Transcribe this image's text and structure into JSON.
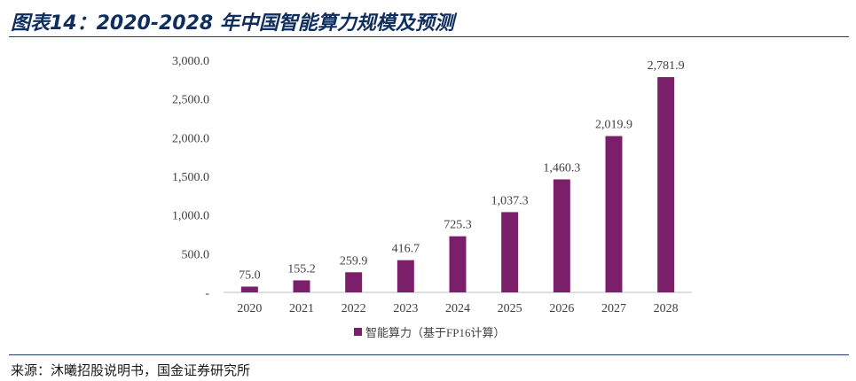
{
  "figure": {
    "title": "图表14：2020-2028 年中国智能算力规模及预测",
    "source": "来源：沐曦招股说明书，国金证券研究所"
  },
  "colors": {
    "bar": "#7b1f6b",
    "title": "#0f2e5e",
    "rule": "#1f3d6b",
    "axis": "#bfbfbf",
    "text": "#404040"
  },
  "chart_data": {
    "type": "bar",
    "title": "",
    "xlabel": "",
    "ylabel": "",
    "categories": [
      "2020",
      "2021",
      "2022",
      "2023",
      "2024",
      "2025",
      "2026",
      "2027",
      "2028"
    ],
    "series": [
      {
        "name": "智能算力（基于FP16计算）",
        "values": [
          75.0,
          155.2,
          259.9,
          416.7,
          725.3,
          1037.3,
          1460.3,
          2019.9,
          2781.9
        ],
        "labels": [
          "75.0",
          "155.2",
          "259.9",
          "416.7",
          "725.3",
          "1,037.3",
          "1,460.3",
          "2,019.9",
          "2,781.9"
        ]
      }
    ],
    "ylim": [
      0,
      3000
    ],
    "yticks": [
      0,
      500,
      1000,
      1500,
      2000,
      2500,
      3000
    ],
    "ytick_labels": [
      "-",
      "500.0",
      "1,000.0",
      "1,500.0",
      "2,000.0",
      "2,500.0",
      "3,000.0"
    ],
    "grid": false,
    "legend_position": "bottom-center"
  }
}
